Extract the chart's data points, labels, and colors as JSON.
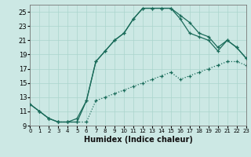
{
  "xlabel": "Humidex (Indice chaleur)",
  "bg_color": "#cce8e4",
  "grid_color": "#aad4cc",
  "line_color": "#1a6b5a",
  "xlim": [
    0,
    23
  ],
  "ylim": [
    9,
    26
  ],
  "xticks": [
    0,
    1,
    2,
    3,
    4,
    5,
    6,
    7,
    8,
    9,
    10,
    11,
    12,
    13,
    14,
    15,
    16,
    17,
    18,
    19,
    20,
    21,
    22,
    23
  ],
  "yticks": [
    9,
    11,
    13,
    15,
    17,
    19,
    21,
    23,
    25
  ],
  "line1_x": [
    0,
    1,
    2,
    3,
    4,
    5,
    6,
    7,
    8,
    9,
    10,
    11,
    12,
    13,
    14,
    15,
    16,
    17,
    18,
    19,
    20,
    21,
    22,
    23
  ],
  "line1_y": [
    12,
    11,
    10,
    9.5,
    9.5,
    10,
    12.5,
    18,
    19.5,
    21,
    22,
    24,
    25.5,
    25.5,
    25.5,
    25.5,
    24.5,
    23.5,
    22,
    21.5,
    20,
    21,
    20,
    18.5
  ],
  "line2_x": [
    0,
    1,
    2,
    3,
    4,
    5,
    6,
    7,
    8,
    9,
    10,
    11,
    12,
    13,
    14,
    15,
    16,
    17,
    18,
    19,
    20,
    21,
    22,
    23
  ],
  "line2_y": [
    12,
    11,
    10,
    9.5,
    9.5,
    9.5,
    9.5,
    12.5,
    13,
    13.5,
    14,
    14.5,
    15,
    15.5,
    16,
    16.5,
    15.5,
    16,
    16.5,
    17,
    17.5,
    18,
    18,
    17.5
  ],
  "line3_x": [
    0,
    1,
    2,
    3,
    4,
    5,
    6,
    7,
    8,
    9,
    10,
    11,
    12,
    13,
    14,
    15,
    16,
    17,
    18,
    19,
    20,
    21,
    22,
    23
  ],
  "line3_y": [
    12,
    11,
    10,
    9.5,
    9.5,
    9.5,
    12.5,
    18,
    19.5,
    21,
    22,
    24,
    25.5,
    25.5,
    25.5,
    25.5,
    24,
    22,
    21.5,
    21,
    19.5,
    21,
    20,
    18.5
  ]
}
